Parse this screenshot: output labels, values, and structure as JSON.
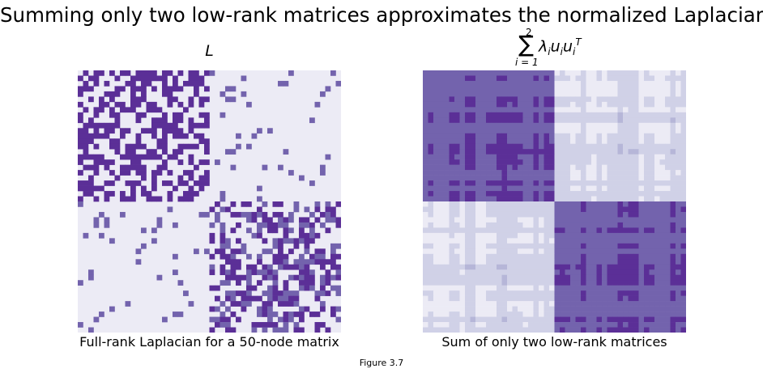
{
  "figure": {
    "suptitle": "Summing only two low-rank matrices approximates the normalized Laplacian",
    "caption": "Figure 3.7"
  },
  "colors": {
    "empty": "#ecebf5",
    "strong": "#5b2f97",
    "medium": "#7363ad",
    "light": "#d0d1e7",
    "mid_light": "#b6b6d8"
  },
  "chart_data": [
    {
      "type": "heatmap",
      "title": "L",
      "xlabel": "Full-rank Laplacian for a 50-node matrix",
      "ylabel": "",
      "rows": 50,
      "cols": 50,
      "grid": false,
      "axes": "off",
      "colormap": "Purples",
      "blocks": [
        {
          "rows": [
            0,
            24
          ],
          "cols": [
            0,
            24
          ],
          "description_level": "dense",
          "edge_probability": 0.55
        },
        {
          "rows": [
            0,
            24
          ],
          "cols": [
            25,
            49
          ],
          "description_level": "sparse",
          "edge_probability": 0.06
        },
        {
          "rows": [
            25,
            49
          ],
          "cols": [
            0,
            24
          ],
          "description_level": "sparse",
          "edge_probability": 0.06
        },
        {
          "rows": [
            25,
            49
          ],
          "cols": [
            25,
            49
          ],
          "description_level": "dense",
          "edge_probability": 0.55
        }
      ]
    },
    {
      "type": "heatmap",
      "title_parts": {
        "sum_upper": "2",
        "sum_lower": "i = 1",
        "term": "λ",
        "sub_i": "i",
        "u": "u",
        "sup_t": "T"
      },
      "xlabel": "Sum of only two low-rank matrices",
      "ylabel": "",
      "rows": 50,
      "cols": 50,
      "grid": false,
      "axes": "off",
      "colormap": "Purples",
      "blocks": [
        {
          "rows": [
            0,
            24
          ],
          "cols": [
            0,
            24
          ],
          "level": "high"
        },
        {
          "rows": [
            0,
            24
          ],
          "cols": [
            25,
            49
          ],
          "level": "low"
        },
        {
          "rows": [
            25,
            49
          ],
          "cols": [
            0,
            24
          ],
          "level": "low"
        },
        {
          "rows": [
            25,
            49
          ],
          "cols": [
            25,
            49
          ],
          "level": "high"
        }
      ]
    }
  ]
}
